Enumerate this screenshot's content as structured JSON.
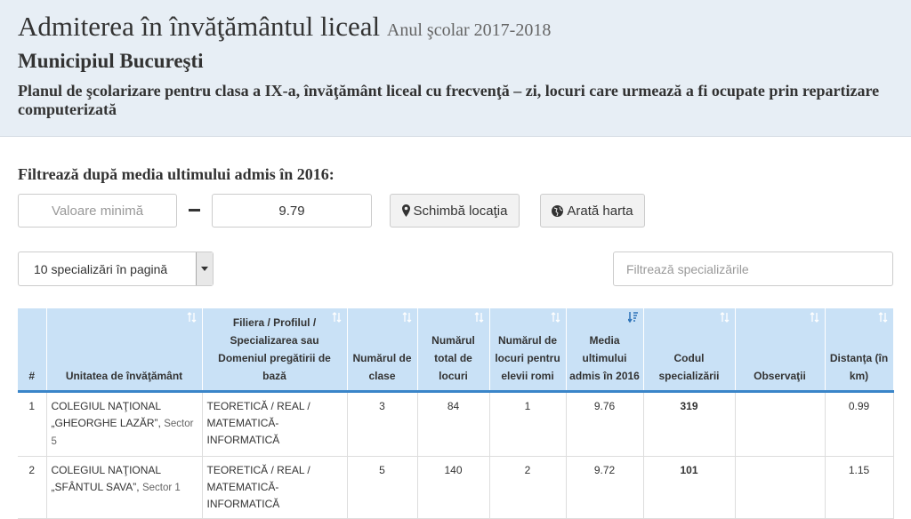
{
  "header": {
    "title": "Admiterea în învăţământul liceal",
    "year": "Anul şcolar 2017-2018",
    "city": "Municipiul Bucureşti",
    "description": "Planul de şcolarizare pentru clasa a IX-a, învăţământ liceal cu frecvenţă – zi, locuri care urmează a fi ocupate prin repartizare computerizată"
  },
  "filter": {
    "label": "Filtrează după media ultimului admis în 2016:",
    "min_placeholder": "Valoare minimă",
    "max_value": 9.79,
    "location_button": "Schimbă locaţia",
    "map_button": "Arată harta",
    "page_size": "10 specializări în pagină",
    "search_placeholder": "Filtrează specializările"
  },
  "table": {
    "columns": [
      "#",
      "Unitatea de învăţământ",
      "Filiera / Profilul / Specializarea sau Domeniul pregătirii de bază",
      "Numărul de clase",
      "Numărul total de locuri",
      "Numărul de locuri pentru elevii romi",
      "Media ultimului admis în 2016",
      "Codul specializării",
      "Observaţii",
      "Distanţa (în km)"
    ],
    "rows": [
      {
        "rank": 1,
        "school": "COLEGIUL NAŢIONAL „GHEORGHE LAZĂR”,",
        "sector": "Sector 5",
        "profile": "TEORETICĂ / REAL / MATEMATICĂ-INFORMATICĂ",
        "classes": 3,
        "places": 84,
        "roma_places": 1,
        "last_grade": 9.76,
        "code": 319,
        "distance": 0.99
      },
      {
        "rank": 2,
        "school": "COLEGIUL NAŢIONAL „SFÂNTUL SAVA”,",
        "sector": "Sector 1",
        "profile": "TEORETICĂ / REAL / MATEMATICĂ-INFORMATICĂ",
        "classes": 5,
        "places": 140,
        "roma_places": 2,
        "last_grade": 9.72,
        "code": 101,
        "distance": 1.15
      }
    ]
  }
}
